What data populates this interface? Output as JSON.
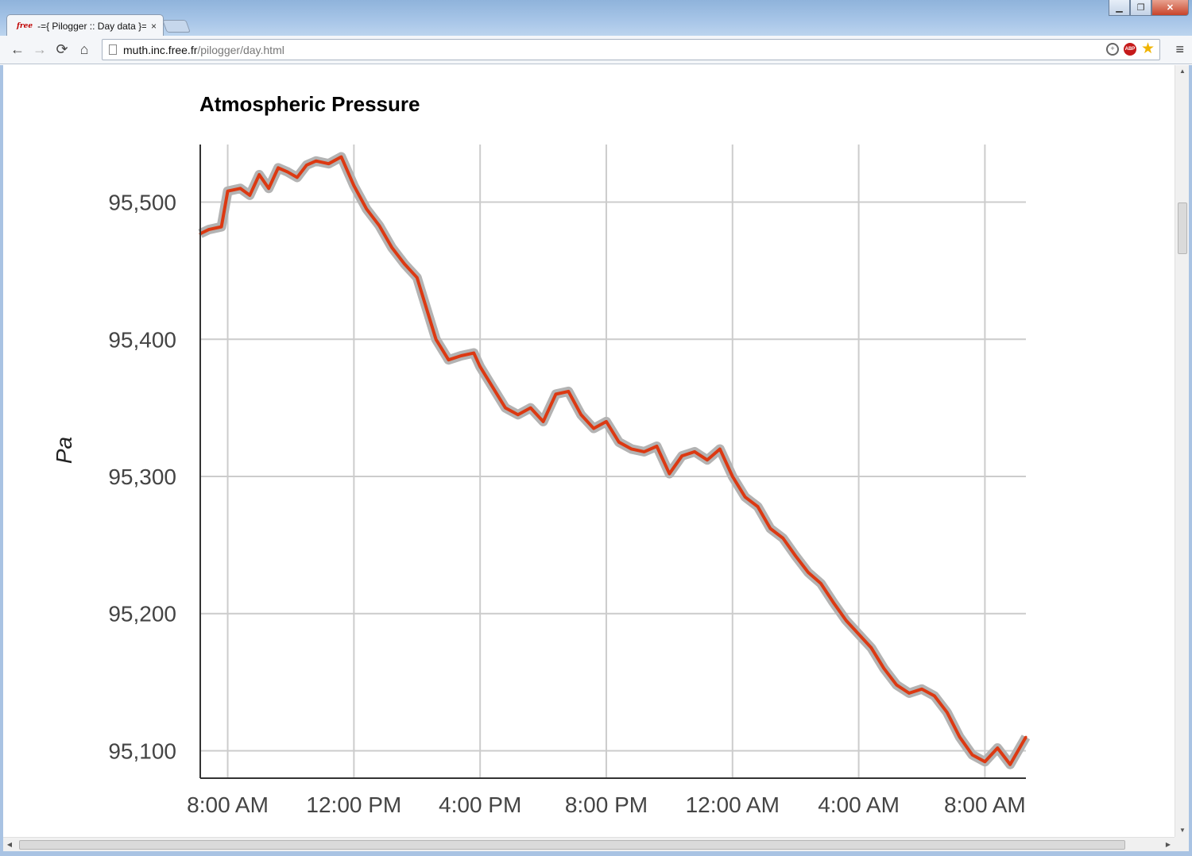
{
  "browser": {
    "tab_favicon": "free",
    "tab_title": "-={ Pilogger :: Day data }=-",
    "tab_close": "×",
    "url_host": "muth.inc.free.fr",
    "url_path": "/pilogger/day.html",
    "back_icon": "←",
    "forward_icon": "→",
    "reload_icon": "⟳",
    "home_icon": "⌂",
    "zoom_icon": "+",
    "abp_icon": "ABP",
    "star_icon": "★",
    "menu_icon": "≡",
    "minimize": "▁",
    "maximize": "❐",
    "close": "✕"
  },
  "chart_data": {
    "type": "line",
    "title": "Atmospheric Pressure",
    "ylabel": "Pa",
    "xlabel": "",
    "x_ticks": [
      "8:00 AM",
      "12:00 PM",
      "4:00 PM",
      "8:00 PM",
      "12:00 AM",
      "4:00 AM",
      "8:00 AM"
    ],
    "x_tick_hours": [
      0,
      4,
      8,
      12,
      16,
      20,
      24
    ],
    "y_ticks": [
      "95,100",
      "95,200",
      "95,300",
      "95,400",
      "95,500"
    ],
    "y_tick_values": [
      95100,
      95200,
      95300,
      95400,
      95500
    ],
    "xlim_hours": [
      -0.87,
      25.3
    ],
    "ylim": [
      95080,
      95542
    ],
    "grid": true,
    "colors": {
      "line": "#dc3912",
      "band": "#b3b3b3",
      "grid": "#cccccc",
      "axis": "#333333"
    },
    "series": [
      {
        "name": "",
        "hours_after_8am": [
          -0.87,
          -0.6,
          -0.2,
          0.0,
          0.4,
          0.7,
          1.0,
          1.3,
          1.6,
          1.9,
          2.2,
          2.5,
          2.8,
          3.2,
          3.6,
          4.0,
          4.4,
          4.8,
          5.2,
          5.6,
          6.0,
          6.2,
          6.6,
          7.0,
          7.4,
          7.8,
          8.0,
          8.4,
          8.8,
          9.2,
          9.6,
          10.0,
          10.4,
          10.8,
          11.2,
          11.6,
          12.0,
          12.4,
          12.8,
          13.2,
          13.6,
          14.0,
          14.4,
          14.8,
          15.2,
          15.6,
          16.0,
          16.4,
          16.8,
          17.2,
          17.6,
          18.0,
          18.4,
          18.8,
          19.2,
          19.6,
          20.0,
          20.4,
          20.8,
          21.2,
          21.6,
          22.0,
          22.4,
          22.8,
          23.2,
          23.6,
          24.0,
          24.4,
          24.8,
          25.3
        ],
        "values": [
          95477,
          95480,
          95482,
          95508,
          95510,
          95505,
          95520,
          95510,
          95525,
          95522,
          95518,
          95527,
          95530,
          95528,
          95533,
          95512,
          95495,
          95483,
          95467,
          95455,
          95445,
          95430,
          95400,
          95385,
          95388,
          95390,
          95380,
          95365,
          95350,
          95345,
          95350,
          95340,
          95360,
          95362,
          95345,
          95335,
          95340,
          95325,
          95320,
          95318,
          95322,
          95302,
          95315,
          95318,
          95312,
          95320,
          95300,
          95285,
          95278,
          95262,
          95255,
          95242,
          95230,
          95222,
          95208,
          95195,
          95185,
          95175,
          95160,
          95148,
          95142,
          95145,
          95140,
          95128,
          95110,
          95097,
          95092,
          95102,
          95090,
          95110
        ]
      }
    ]
  }
}
